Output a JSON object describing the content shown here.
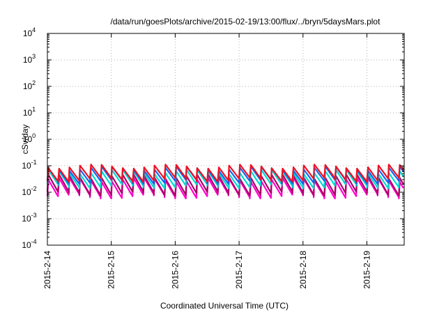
{
  "chart_data": {
    "type": "line",
    "title": "/data/run/goesPlots/archive/2015-02-19/13:00/flux/../bryn/5daysMars.plot",
    "xlabel": "Coordinated Universal Time (UTC)",
    "ylabel": "cSv/day",
    "yscale": "log",
    "ylim": [
      0.0001,
      10000
    ],
    "y_ticks": [
      {
        "base": "10",
        "exp": "-4"
      },
      {
        "base": "10",
        "exp": "-3"
      },
      {
        "base": "10",
        "exp": "-2"
      },
      {
        "base": "10",
        "exp": "-1"
      },
      {
        "base": "10",
        "exp": "0"
      },
      {
        "base": "10",
        "exp": "1"
      },
      {
        "base": "10",
        "exp": "2"
      },
      {
        "base": "10",
        "exp": "3"
      },
      {
        "base": "10",
        "exp": "4"
      }
    ],
    "x_ticks": [
      "2015-2-14",
      "2015-2-15",
      "2015-2-16",
      "2015-2-17",
      "2015-2-18",
      "2015-2-19"
    ],
    "xlim": [
      "2015-02-14 00:00",
      "2015-02-19 14:00"
    ],
    "grid": true,
    "cycles_per_day": 6,
    "series": [
      {
        "color": "#ff00cc",
        "peak": 0.03,
        "trough": 0.007
      },
      {
        "color": "#aa0066",
        "peak": 0.04,
        "trough": 0.009
      },
      {
        "color": "#00d8d0",
        "peak": 0.06,
        "trough": 0.017
      },
      {
        "color": "#1166ee",
        "peak": 0.08,
        "trough": 0.025
      },
      {
        "color": "#ee1122",
        "peak": 0.095,
        "trough": 0.03
      }
    ]
  }
}
